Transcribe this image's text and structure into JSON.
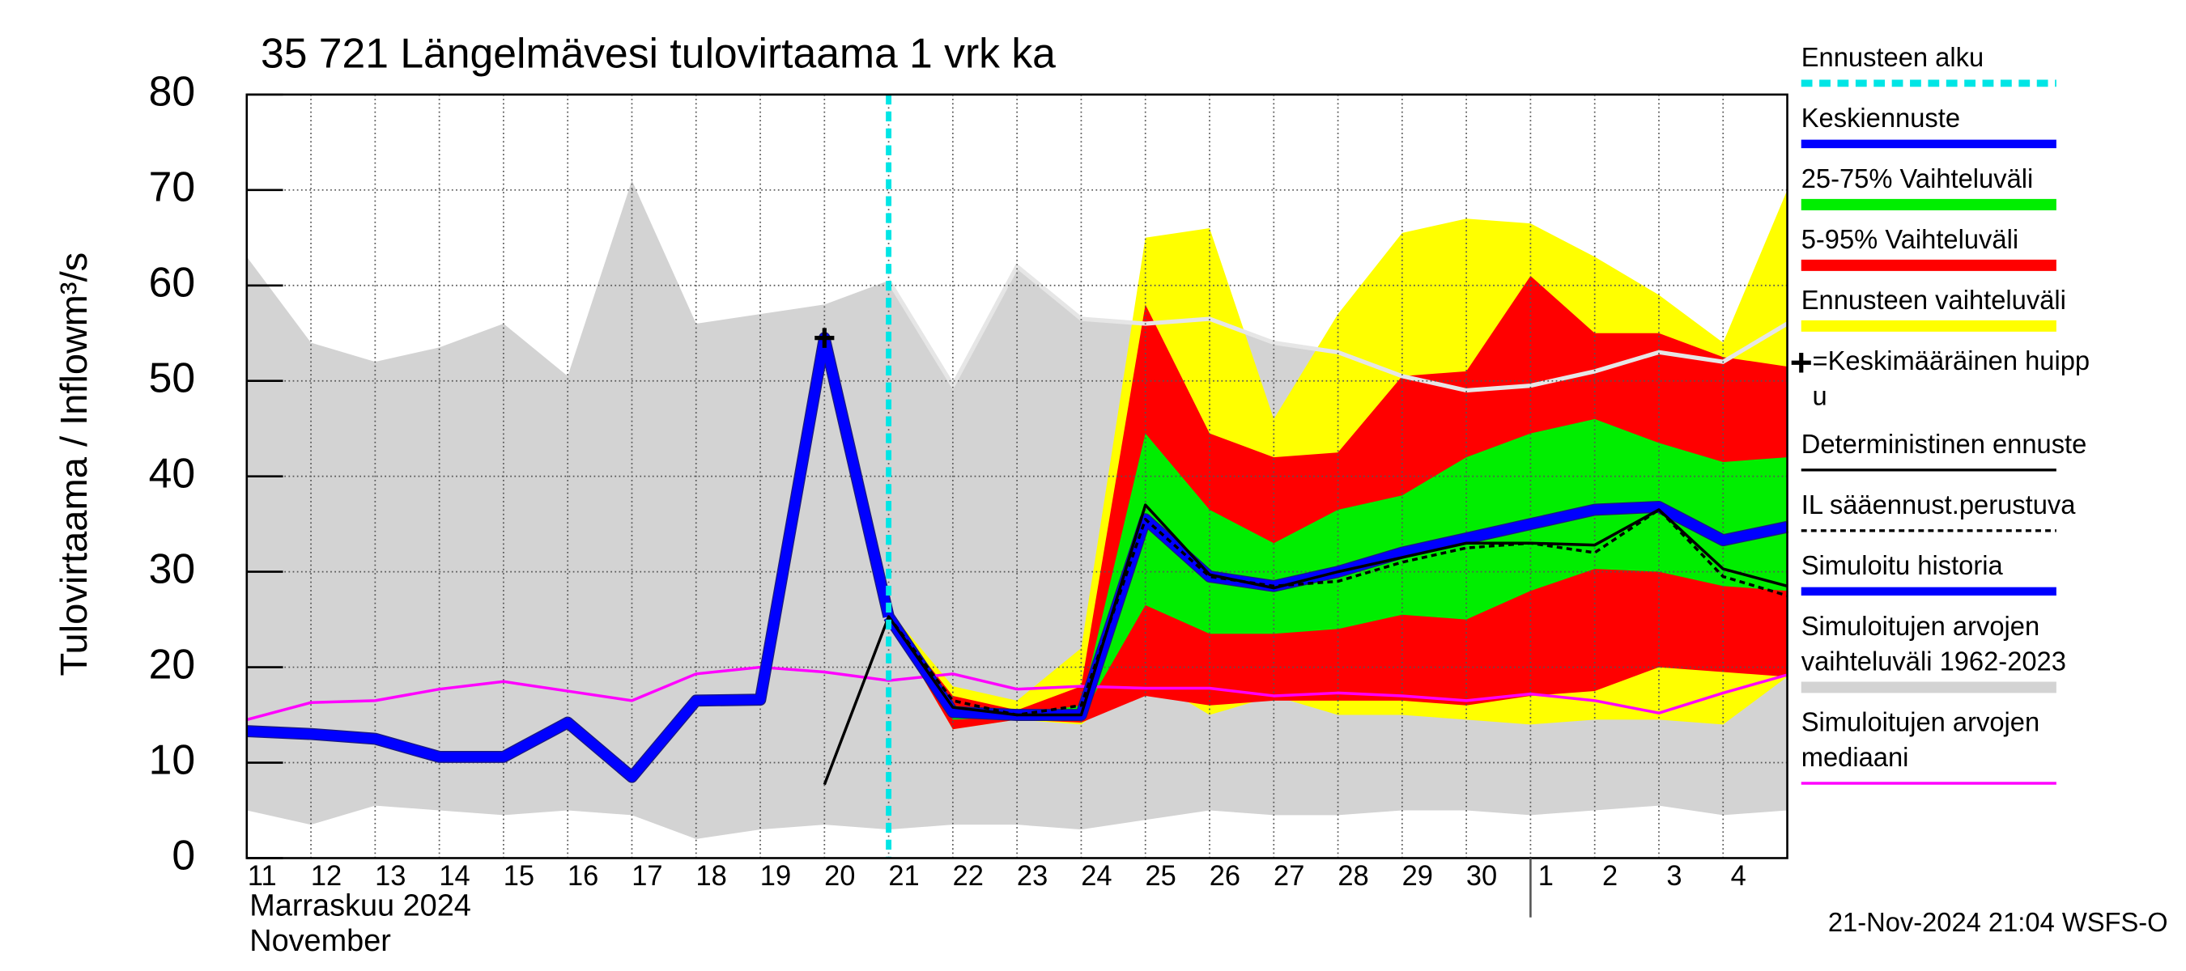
{
  "chart_data": {
    "type": "band-forecast",
    "title": "35 721 Längelmävesi tulovirtaama 1 vrk ka",
    "y_label": "Tulovirtaama / Inflow",
    "y_unit": "m³/s",
    "month_label_fi": "Marraskuu 2024",
    "month_label_en": "November",
    "timestamp": "21-Nov-2024 21:04 WSFS-O",
    "categories": [
      "11",
      "12",
      "13",
      "14",
      "15",
      "16",
      "17",
      "18",
      "19",
      "20",
      "21",
      "22",
      "23",
      "24",
      "25",
      "26",
      "27",
      "28",
      "29",
      "30",
      "1",
      "2",
      "3",
      "4",
      null
    ],
    "month_break": 20,
    "ylim": [
      0,
      80
    ],
    "yticks": [
      0,
      10,
      20,
      30,
      40,
      50,
      60,
      70,
      80
    ],
    "grid": true,
    "forecast_start": {
      "name": "Ennusteen alku",
      "color": "#00e5e5",
      "x": 10
    },
    "bands": [
      {
        "name": [
          "Simuloitujen arvojen",
          "vaihteluväli 1962-2023"
        ],
        "color": "#d3d3d3",
        "upper": [
          63,
          54,
          52,
          53.5,
          56,
          50.5,
          71,
          56,
          57,
          58,
          60.5,
          49.5,
          62,
          56.5,
          56,
          56.5,
          54,
          53,
          50.5,
          49,
          49.5,
          51,
          53,
          52,
          56
        ],
        "lower": [
          5,
          3.5,
          5.5,
          5,
          4.5,
          5,
          4.5,
          2,
          3,
          3.5,
          3,
          3.5,
          3.5,
          3,
          4,
          5,
          4.5,
          4.5,
          5,
          5,
          4.5,
          5,
          5.5,
          4.5,
          5
        ]
      },
      {
        "name": [
          "Ennusteen vaihteluväli"
        ],
        "color": "#ffff00",
        "upper": [
          null,
          null,
          null,
          null,
          null,
          null,
          null,
          null,
          null,
          null,
          26,
          18,
          16.5,
          22,
          65,
          66,
          46,
          57,
          65.5,
          67,
          66.5,
          63,
          59,
          54,
          70
        ],
        "lower": [
          null,
          null,
          null,
          null,
          null,
          null,
          null,
          null,
          null,
          null,
          25,
          13.5,
          14.5,
          14,
          19,
          15,
          17,
          15,
          15,
          14.5,
          14,
          14.5,
          14.5,
          14,
          19
        ]
      },
      {
        "name": [
          "5-95% Vaihteluväli"
        ],
        "color": "#ff0000",
        "upper": [
          null,
          null,
          null,
          null,
          null,
          null,
          null,
          null,
          null,
          null,
          25.5,
          17,
          15.5,
          18,
          58,
          44.5,
          42,
          42.5,
          50.5,
          51,
          61,
          55,
          55,
          52.5,
          51.5
        ],
        "lower": [
          null,
          null,
          null,
          null,
          null,
          null,
          null,
          null,
          null,
          null,
          25,
          13.5,
          14.5,
          14.2,
          17,
          16,
          16.5,
          16.5,
          16.5,
          16,
          17,
          17.5,
          20,
          19.5,
          19
        ]
      },
      {
        "name": [
          "25-75% Vaihteluväli"
        ],
        "color": "#00ee00",
        "upper": [
          null,
          null,
          null,
          null,
          null,
          null,
          null,
          null,
          null,
          null,
          25.3,
          16,
          15,
          16,
          44.5,
          36.5,
          33,
          36.5,
          38,
          42,
          44.5,
          46,
          43.5,
          41.5,
          42
        ],
        "lower": [
          null,
          null,
          null,
          null,
          null,
          null,
          null,
          null,
          null,
          null,
          25.2,
          14.5,
          14.8,
          14.8,
          26.5,
          23.5,
          23.5,
          24,
          25.5,
          25,
          28,
          30.3,
          30,
          28.5,
          28
        ]
      }
    ],
    "series": [
      {
        "name": [
          "Simuloitujen arvojen",
          "mediaani"
        ],
        "color": "#ff00ff",
        "style": "thin",
        "values": [
          14.5,
          16.3,
          16.5,
          17.7,
          18.5,
          17.5,
          16.5,
          19.3,
          20,
          19.5,
          18.6,
          19.3,
          17.7,
          18,
          17.8,
          17.8,
          17,
          17.3,
          17,
          16.5,
          17.2,
          16.5,
          15.2,
          17.3,
          19.2
        ]
      },
      {
        "name": [
          "Simuloitu historia"
        ],
        "color": "#0000ff",
        "style": "thick",
        "values": [
          13.3,
          13,
          12.5,
          10.6,
          10.6,
          14.2,
          8.5,
          16.5,
          16.6,
          54.5,
          25.3,
          null,
          null,
          null,
          null,
          null,
          null,
          null,
          null,
          null,
          null,
          null,
          null,
          null,
          null
        ]
      },
      {
        "name": [
          "Keskiennuste"
        ],
        "color": "#0000ff",
        "style": "thick",
        "values": [
          null,
          null,
          null,
          null,
          null,
          null,
          null,
          null,
          null,
          null,
          25.3,
          15.3,
          15,
          15,
          35.5,
          29.5,
          28.5,
          30,
          32,
          33.5,
          35,
          36.5,
          36.8,
          33.3,
          34.7
        ]
      },
      {
        "name": [
          "Deterministinen ennuste"
        ],
        "color": "#000000",
        "style": "thin",
        "values": [
          null,
          null,
          null,
          null,
          null,
          null,
          null,
          null,
          null,
          7.7,
          25.3,
          15.8,
          15,
          15,
          37,
          29.7,
          28.3,
          30,
          31.5,
          33,
          33,
          32.8,
          36.5,
          30.3,
          28.5
        ]
      },
      {
        "name": [
          "IL sääennust.perustuva"
        ],
        "color": "#000000",
        "style": "dashed",
        "values": [
          null,
          null,
          null,
          null,
          null,
          null,
          null,
          null,
          null,
          null,
          25.3,
          16.5,
          15,
          16,
          35.5,
          29.5,
          28.5,
          29,
          31,
          32.5,
          33,
          32,
          36.5,
          29.5,
          27.5
        ]
      }
    ],
    "peak": {
      "name": [
        "=Keskimääräinen huipp",
        "u"
      ],
      "color": "#000000",
      "x": 9,
      "value": 54.5
    }
  }
}
